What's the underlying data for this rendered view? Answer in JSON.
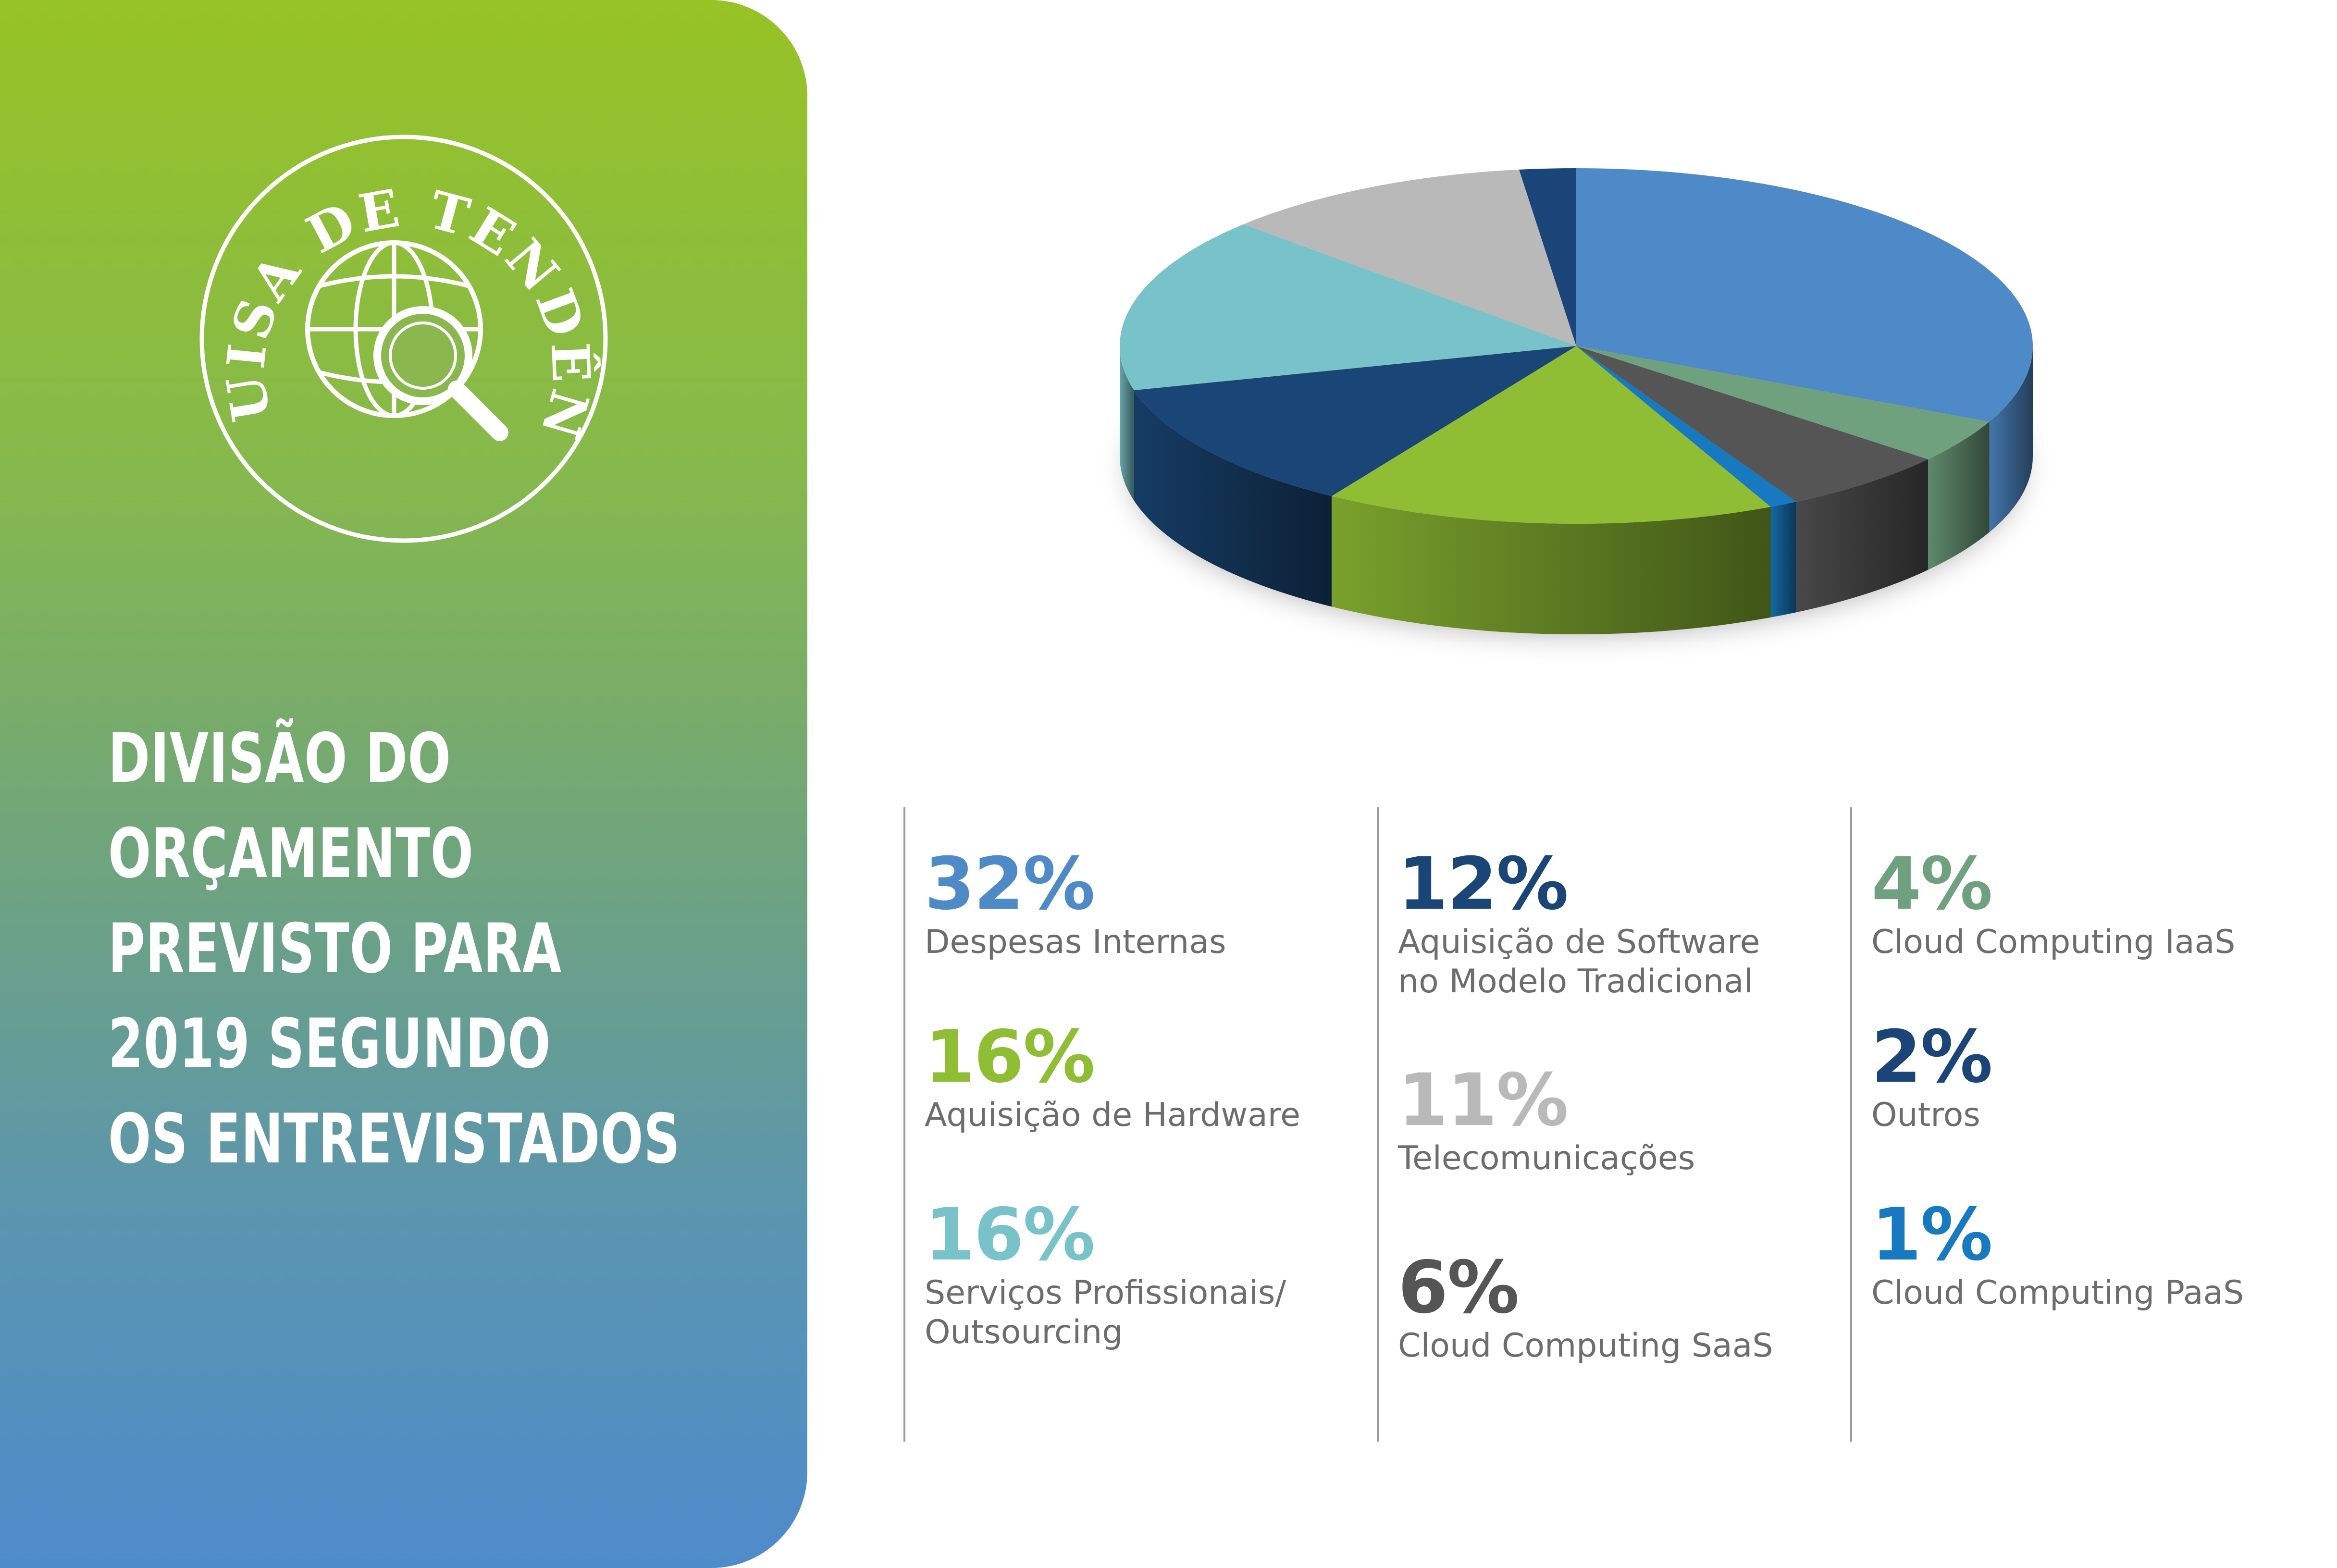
{
  "badge": {
    "text": "PESQUISA DE TENDÊNCIAS",
    "icon": "globe-with-magnifier-icon"
  },
  "title_lines": [
    "DIVISÃO DO",
    "ORÇAMENTO",
    "PREVISTO PARA",
    "2019 SEGUNDO",
    "OS ENTREVISTADOS"
  ],
  "chart_data": {
    "type": "pie",
    "style": "3d",
    "legend_placement": "below",
    "slices": [
      {
        "label": "Despesas Internas",
        "value": 32,
        "display": "32%",
        "color": "#4f8ac8"
      },
      {
        "label": "Cloud Computing IaaS",
        "value": 4,
        "display": "4%",
        "color": "#6fa17f"
      },
      {
        "label": "Cloud Computing SaaS",
        "value": 6,
        "display": "6%",
        "color": "#555555"
      },
      {
        "label": "Cloud Computing PaaS",
        "value": 1,
        "display": "1%",
        "color": "#1779bf"
      },
      {
        "label": "Aquisição de Hardware",
        "value": 16,
        "display": "16%",
        "color": "#8fbd34"
      },
      {
        "label": "Aquisição de Software\nno Modelo Tradicional",
        "value": 12,
        "display": "12%",
        "color": "#1a4677"
      },
      {
        "label": "Serviços Profissionais/\nOutsourcing",
        "value": 16,
        "display": "16%",
        "color": "#77c3c9"
      },
      {
        "label": "Telecomunicações",
        "value": 11,
        "display": "11%",
        "color": "#b9b9b9"
      },
      {
        "label": "Outros",
        "value": 2,
        "display": "2%",
        "color": "#1b4478"
      }
    ]
  },
  "legend": {
    "columns": [
      [
        {
          "pct": "32%",
          "label": "Despesas Internas",
          "color": "#4f8ac8"
        },
        {
          "pct": "16%",
          "label": "Aquisição de Hardware",
          "color": "#8fbd34"
        },
        {
          "pct": "16%",
          "label": "Serviços Profissionais/\nOutsourcing",
          "color": "#77c3c9"
        }
      ],
      [
        {
          "pct": "12%",
          "label": "Aquisição de Software\nno Modelo Tradicional",
          "color": "#1a4677"
        },
        {
          "pct": "11%",
          "label": "Telecomunicações",
          "color": "#b9b9b9"
        },
        {
          "pct": "6%",
          "label": "Cloud Computing SaaS",
          "color": "#555555"
        }
      ],
      [
        {
          "pct": "4%",
          "label": "Cloud Computing IaaS",
          "color": "#6fa17f"
        },
        {
          "pct": "2%",
          "label": "Outros",
          "color": "#1b4478"
        },
        {
          "pct": "1%",
          "label": "Cloud Computing PaaS",
          "color": "#1779bf"
        }
      ]
    ]
  }
}
